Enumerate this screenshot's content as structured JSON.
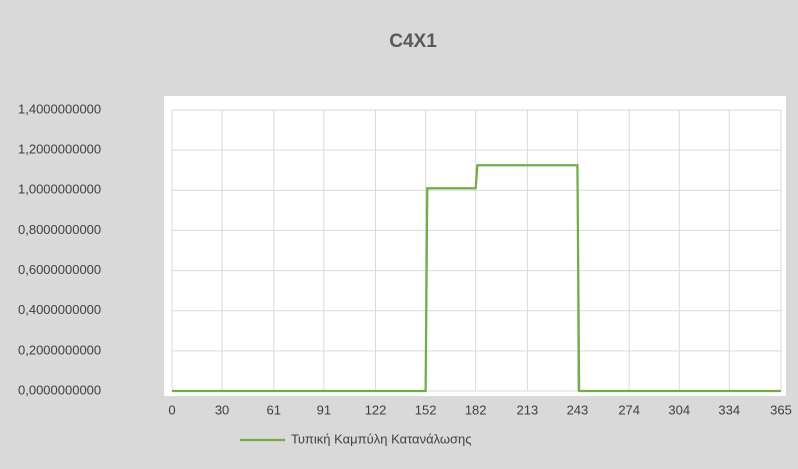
{
  "chart_data": {
    "type": "line",
    "title": "C4X1",
    "x": [
      0,
      152,
      153,
      182,
      183,
      243,
      244,
      365
    ],
    "series": [
      {
        "name": "Τυπική Καμπύλη Κατανάλωσης",
        "color": "#70ad47",
        "values": [
          0,
          0,
          1.01,
          1.01,
          1.125,
          1.125,
          0,
          0
        ]
      }
    ],
    "xlim": [
      0,
      365
    ],
    "xticks": [
      0,
      30,
      61,
      91,
      122,
      152,
      182,
      213,
      243,
      274,
      304,
      334,
      365
    ],
    "ylim": [
      0,
      1.4
    ],
    "yticks": [
      {
        "value": 0,
        "label": "0,0000000000"
      },
      {
        "value": 0.2,
        "label": "0,2000000000"
      },
      {
        "value": 0.4,
        "label": "0,4000000000"
      },
      {
        "value": 0.6,
        "label": "0,6000000000"
      },
      {
        "value": 0.8,
        "label": "0,8000000000"
      },
      {
        "value": 1.0,
        "label": "1,0000000000"
      },
      {
        "value": 1.2,
        "label": "1,2000000000"
      },
      {
        "value": 1.4,
        "label": "1,4000000000"
      }
    ],
    "grid": true,
    "legend": "bottom"
  }
}
